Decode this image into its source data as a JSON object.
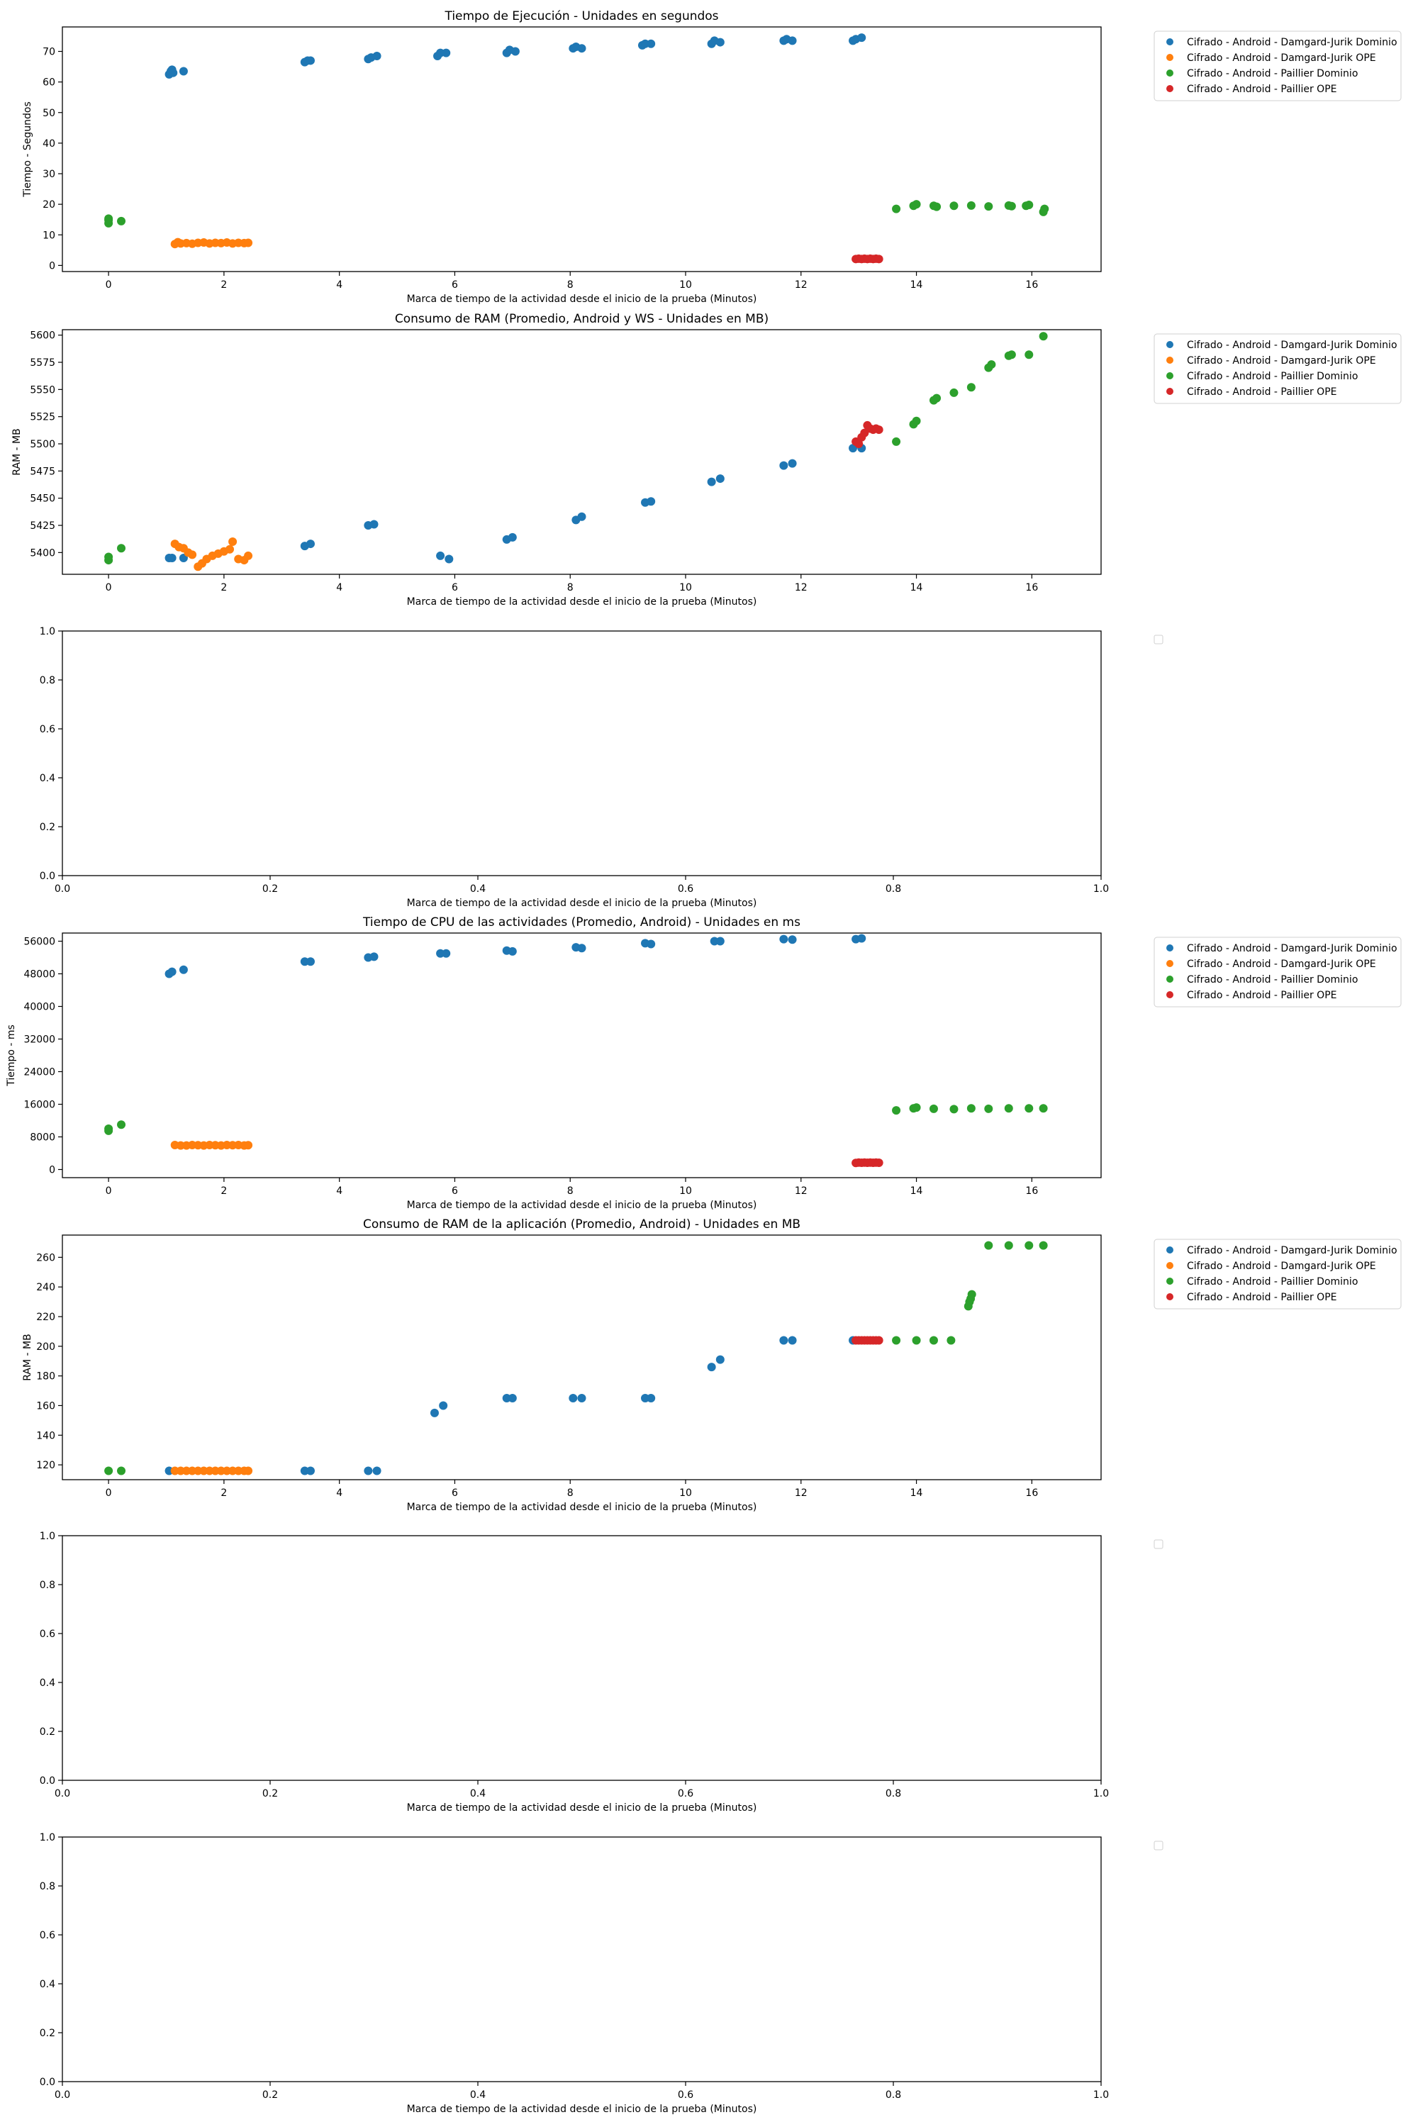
{
  "figure": {
    "xlabel": "Marca de tiempo de la actividad desde el inicio de la prueba (Minutos)"
  },
  "colors": {
    "series_0": "#1f77b4",
    "series_1": "#ff7f0e",
    "series_2": "#2ca02c",
    "series_3": "#d62728"
  },
  "chart_data": [
    {
      "type": "scatter",
      "title": "Tiempo de Ejecución - Unidades en segundos",
      "xlabel": "Marca de tiempo de la actividad desde el inicio de la prueba (Minutos)",
      "ylabel": "Tiempo - Segundos",
      "xlim": [
        -0.8,
        17.2
      ],
      "ylim": [
        -2,
        78
      ],
      "xticks": [
        0,
        2,
        4,
        6,
        8,
        10,
        12,
        14,
        16
      ],
      "yticks": [
        0,
        10,
        20,
        30,
        40,
        50,
        60,
        70
      ],
      "grid": false,
      "legend": "outside-right",
      "series": [
        {
          "name": "Cifrado - Android - Damgard-Jurik Dominio",
          "x": [
            1.05,
            1.08,
            1.1,
            1.12,
            1.3,
            3.4,
            3.45,
            3.5,
            4.5,
            4.55,
            4.65,
            5.7,
            5.75,
            5.85,
            6.9,
            6.95,
            7.05,
            8.05,
            8.1,
            8.2,
            9.25,
            9.3,
            9.4,
            10.45,
            10.5,
            10.6,
            11.7,
            11.75,
            11.85,
            12.9,
            12.95,
            13.05
          ],
          "y": [
            62.5,
            63.5,
            64,
            63,
            63.5,
            66.5,
            67,
            67,
            67.5,
            68,
            68.5,
            68.5,
            69.5,
            69.5,
            69.5,
            70.5,
            70,
            71,
            71.5,
            71,
            72,
            72.5,
            72.5,
            72.5,
            73.5,
            73,
            73.5,
            74,
            73.5,
            73.5,
            74,
            74.5
          ]
        },
        {
          "name": "Cifrado - Android - Damgard-Jurik OPE",
          "x": [
            1.15,
            1.2,
            1.25,
            1.35,
            1.45,
            1.55,
            1.65,
            1.75,
            1.85,
            1.95,
            2.05,
            2.15,
            2.25,
            2.35,
            2.42
          ],
          "y": [
            7,
            7.6,
            7.2,
            7.3,
            7.1,
            7.4,
            7.5,
            7.2,
            7.4,
            7.3,
            7.5,
            7.2,
            7.4,
            7.3,
            7.4
          ]
        },
        {
          "name": "Cifrado - Android - Paillier Dominio",
          "x": [
            0,
            0,
            0,
            0.22,
            13.65,
            13.95,
            14,
            14.3,
            14.35,
            14.65,
            14.95,
            15.25,
            15.6,
            15.65,
            15.9,
            15.95,
            16.2,
            16.22
          ],
          "y": [
            13.8,
            14.8,
            15.3,
            14.5,
            18.5,
            19.5,
            20,
            19.5,
            19.2,
            19.5,
            19.6,
            19.3,
            19.6,
            19.4,
            19.5,
            19.8,
            17.5,
            18.5
          ]
        },
        {
          "name": "Cifrado - Android - Paillier OPE",
          "x": [
            12.95,
            13,
            13.05,
            13.1,
            13.15,
            13.2,
            13.25,
            13.3,
            13.35
          ],
          "y": [
            2.1,
            2.2,
            2.1,
            2.2,
            2.1,
            2.2,
            2.1,
            2.2,
            2.1
          ]
        }
      ]
    },
    {
      "type": "scatter",
      "title": "Consumo de RAM (Promedio, Android y WS - Unidades en MB)",
      "xlabel": "Marca de tiempo de la actividad desde el inicio de la prueba (Minutos)",
      "ylabel": "RAM - MB",
      "xlim": [
        -0.8,
        17.2
      ],
      "ylim": [
        5380,
        5605
      ],
      "xticks": [
        0,
        2,
        4,
        6,
        8,
        10,
        12,
        14,
        16
      ],
      "yticks": [
        5400,
        5425,
        5450,
        5475,
        5500,
        5525,
        5550,
        5575,
        5600
      ],
      "grid": false,
      "legend": "outside-right",
      "series": [
        {
          "name": "Cifrado - Android - Damgard-Jurik Dominio",
          "x": [
            1.05,
            1.1,
            1.3,
            3.4,
            3.5,
            4.5,
            4.6,
            5.75,
            5.9,
            6.9,
            7.0,
            8.1,
            8.2,
            9.3,
            9.4,
            10.45,
            10.6,
            11.7,
            11.85,
            12.9,
            13.05
          ],
          "y": [
            5395,
            5395,
            5395,
            5406,
            5408,
            5425,
            5426,
            5397,
            5394,
            5412,
            5414,
            5430,
            5433,
            5446,
            5447,
            5465,
            5468,
            5480,
            5482,
            5496,
            5496
          ]
        },
        {
          "name": "Cifrado - Android - Damgard-Jurik OPE",
          "x": [
            1.15,
            1.22,
            1.3,
            1.38,
            1.45,
            1.55,
            1.62,
            1.7,
            1.8,
            1.9,
            2.0,
            2.1,
            2.15,
            2.25,
            2.35,
            2.42
          ],
          "y": [
            5408,
            5405,
            5404,
            5400,
            5398,
            5387,
            5390,
            5394,
            5397,
            5399,
            5401,
            5403,
            5410,
            5394,
            5393,
            5397
          ]
        },
        {
          "name": "Cifrado - Android - Paillier Dominio",
          "x": [
            0,
            0,
            0.22,
            13.65,
            13.95,
            14,
            14.3,
            14.35,
            14.65,
            14.95,
            15.25,
            15.3,
            15.6,
            15.65,
            15.95,
            16.2
          ],
          "y": [
            5393,
            5396,
            5404,
            5502,
            5518,
            5521,
            5540,
            5542,
            5547,
            5552,
            5570,
            5573,
            5581,
            5582,
            5582,
            5599
          ]
        },
        {
          "name": "Cifrado - Android - Paillier OPE",
          "x": [
            12.95,
            13.0,
            13.05,
            13.1,
            13.15,
            13.2,
            13.25,
            13.3,
            13.35
          ],
          "y": [
            5502,
            5500,
            5506,
            5510,
            5517,
            5514,
            5513,
            5514,
            5513
          ]
        }
      ]
    },
    {
      "type": "scatter",
      "title": "",
      "xlabel": "Marca de tiempo de la actividad desde el inicio de la prueba (Minutos)",
      "ylabel": "",
      "xlim": [
        0,
        1
      ],
      "ylim": [
        0,
        1
      ],
      "xticks": [
        0.0,
        0.2,
        0.4,
        0.6,
        0.8,
        1.0
      ],
      "yticks": [
        0.0,
        0.2,
        0.4,
        0.6,
        0.8,
        1.0
      ],
      "grid": false,
      "legend": "outside-right",
      "series": []
    },
    {
      "type": "scatter",
      "title": "Tiempo de CPU de las actividades (Promedio, Android) - Unidades en ms",
      "xlabel": "Marca de tiempo de la actividad desde el inicio de la prueba (Minutos)",
      "ylabel": "Tiempo - ms",
      "xlim": [
        -0.8,
        17.2
      ],
      "ylim": [
        -2000,
        58000
      ],
      "xticks": [
        0,
        2,
        4,
        6,
        8,
        10,
        12,
        14,
        16
      ],
      "yticks": [
        0,
        8000,
        16000,
        24000,
        32000,
        40000,
        48000,
        56000
      ],
      "grid": false,
      "legend": "outside-right",
      "series": [
        {
          "name": "Cifrado - Android - Damgard-Jurik Dominio",
          "x": [
            1.05,
            1.1,
            1.3,
            3.4,
            3.5,
            4.5,
            4.6,
            5.75,
            5.85,
            6.9,
            7.0,
            8.1,
            8.2,
            9.3,
            9.4,
            10.5,
            10.6,
            11.7,
            11.85,
            12.95,
            13.05
          ],
          "y": [
            48000,
            48500,
            49000,
            51000,
            51000,
            52000,
            52200,
            53000,
            53000,
            53700,
            53500,
            54500,
            54300,
            55500,
            55300,
            56000,
            56000,
            56500,
            56400,
            56500,
            56700
          ]
        },
        {
          "name": "Cifrado - Android - Damgard-Jurik OPE",
          "x": [
            1.15,
            1.25,
            1.35,
            1.45,
            1.55,
            1.65,
            1.75,
            1.85,
            1.95,
            2.05,
            2.15,
            2.25,
            2.35,
            2.42
          ],
          "y": [
            6000,
            5900,
            5900,
            6000,
            5950,
            5900,
            6000,
            5950,
            5900,
            6000,
            5950,
            6000,
            5900,
            5950
          ]
        },
        {
          "name": "Cifrado - Android - Paillier Dominio",
          "x": [
            0,
            0,
            0.22,
            13.65,
            13.95,
            14,
            14.3,
            14.65,
            14.95,
            15.25,
            15.6,
            15.95,
            16.2
          ],
          "y": [
            9500,
            10000,
            11000,
            14500,
            15000,
            15200,
            14900,
            14800,
            15000,
            14900,
            15000,
            15000,
            15000
          ]
        },
        {
          "name": "Cifrado - Android - Paillier OPE",
          "x": [
            12.95,
            13.0,
            13.05,
            13.1,
            13.15,
            13.2,
            13.25,
            13.3,
            13.35
          ],
          "y": [
            1600,
            1700,
            1650,
            1700,
            1650,
            1700,
            1650,
            1700,
            1650
          ]
        }
      ]
    },
    {
      "type": "scatter",
      "title": "Consumo de RAM de la aplicación (Promedio, Android) - Unidades en MB",
      "xlabel": "Marca de tiempo de la actividad desde el inicio de la prueba (Minutos)",
      "ylabel": "RAM - MB",
      "xlim": [
        -0.8,
        17.2
      ],
      "ylim": [
        110,
        275
      ],
      "xticks": [
        0,
        2,
        4,
        6,
        8,
        10,
        12,
        14,
        16
      ],
      "yticks": [
        120,
        140,
        160,
        180,
        200,
        220,
        240,
        260
      ],
      "grid": false,
      "legend": "outside-right",
      "series": [
        {
          "name": "Cifrado - Android - Damgard-Jurik Dominio",
          "x": [
            1.05,
            3.4,
            3.5,
            4.5,
            4.65,
            5.65,
            5.8,
            6.9,
            7.0,
            8.05,
            8.2,
            9.3,
            9.4,
            10.45,
            10.6,
            11.7,
            11.85,
            12.9
          ],
          "y": [
            116,
            116,
            116,
            116,
            116,
            155,
            160,
            165,
            165,
            165,
            165,
            165,
            165,
            186,
            191,
            204,
            204,
            204
          ]
        },
        {
          "name": "Cifrado - Android - Damgard-Jurik OPE",
          "x": [
            1.15,
            1.25,
            1.35,
            1.45,
            1.55,
            1.65,
            1.75,
            1.85,
            1.95,
            2.05,
            2.15,
            2.25,
            2.35,
            2.42
          ],
          "y": [
            116,
            116,
            116,
            116,
            116,
            116,
            116,
            116,
            116,
            116,
            116,
            116,
            116,
            116
          ]
        },
        {
          "name": "Cifrado - Android - Paillier Dominio",
          "x": [
            0,
            0.22,
            13.65,
            14.0,
            14.3,
            14.6,
            14.9,
            14.92,
            14.94,
            14.96,
            15.25,
            15.6,
            15.95,
            16.2
          ],
          "y": [
            116,
            116,
            204,
            204,
            204,
            204,
            227,
            230,
            232,
            235,
            268,
            268,
            268,
            268
          ]
        },
        {
          "name": "Cifrado - Android - Paillier OPE",
          "x": [
            12.95,
            13.0,
            13.05,
            13.1,
            13.15,
            13.2,
            13.25,
            13.3,
            13.35
          ],
          "y": [
            204,
            204,
            204,
            204,
            204,
            204,
            204,
            204,
            204
          ]
        }
      ]
    },
    {
      "type": "scatter",
      "title": "",
      "xlabel": "Marca de tiempo de la actividad desde el inicio de la prueba (Minutos)",
      "ylabel": "",
      "xlim": [
        0,
        1
      ],
      "ylim": [
        0,
        1
      ],
      "xticks": [
        0.0,
        0.2,
        0.4,
        0.6,
        0.8,
        1.0
      ],
      "yticks": [
        0.0,
        0.2,
        0.4,
        0.6,
        0.8,
        1.0
      ],
      "grid": false,
      "legend": "outside-right",
      "series": []
    },
    {
      "type": "scatter",
      "title": "",
      "xlabel": "Marca de tiempo de la actividad desde el inicio de la prueba (Minutos)",
      "ylabel": "",
      "xlim": [
        0,
        1
      ],
      "ylim": [
        0,
        1
      ],
      "xticks": [
        0.0,
        0.2,
        0.4,
        0.6,
        0.8,
        1.0
      ],
      "yticks": [
        0.0,
        0.2,
        0.4,
        0.6,
        0.8,
        1.0
      ],
      "grid": false,
      "legend": "outside-right",
      "series": []
    }
  ]
}
